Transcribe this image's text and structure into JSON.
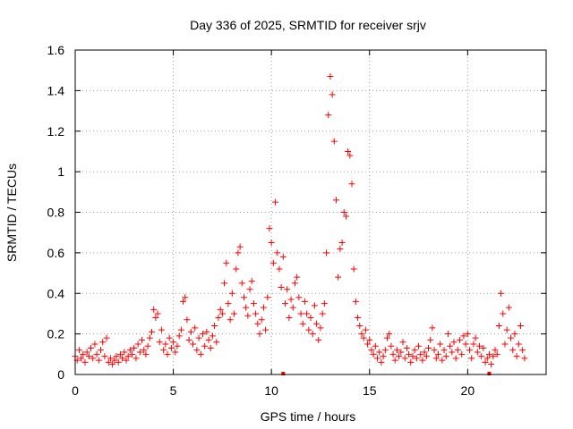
{
  "chart_data": {
    "type": "scatter",
    "title": "Day 336 of 2025, SRMTID for receiver srjv",
    "xlabel": "GPS time / hours",
    "ylabel": "SRMTID / TECUs",
    "xlim": [
      0,
      24
    ],
    "ylim": [
      0,
      1.6
    ],
    "xticks": [
      0,
      5,
      10,
      15,
      20
    ],
    "xtick_labels": [
      "0",
      "5",
      "10",
      "15",
      "20"
    ],
    "yticks": [
      0,
      0.2,
      0.4,
      0.6,
      0.8,
      1.0,
      1.2,
      1.4,
      1.6
    ],
    "ytick_labels": [
      "0",
      "0.2",
      "0.4",
      "0.6",
      "0.8",
      "1",
      "1.2",
      "1.4",
      "1.6"
    ],
    "grid": true,
    "marker": "+",
    "color": "#ff0000",
    "series": [
      {
        "name": "SRMTID",
        "points": [
          [
            0.0,
            0.09
          ],
          [
            0.1,
            0.07
          ],
          [
            0.2,
            0.12
          ],
          [
            0.3,
            0.08
          ],
          [
            0.4,
            0.1
          ],
          [
            0.5,
            0.06
          ],
          [
            0.6,
            0.11
          ],
          [
            0.7,
            0.09
          ],
          [
            0.8,
            0.13
          ],
          [
            0.9,
            0.08
          ],
          [
            1.0,
            0.15
          ],
          [
            1.1,
            0.1
          ],
          [
            1.2,
            0.07
          ],
          [
            1.3,
            0.12
          ],
          [
            1.4,
            0.16
          ],
          [
            1.5,
            0.09
          ],
          [
            1.6,
            0.18
          ],
          [
            1.7,
            0.06
          ],
          [
            1.8,
            0.08
          ],
          [
            1.9,
            0.05
          ],
          [
            2.0,
            0.07
          ],
          [
            2.1,
            0.09
          ],
          [
            2.2,
            0.06
          ],
          [
            2.3,
            0.1
          ],
          [
            2.4,
            0.08
          ],
          [
            2.5,
            0.11
          ],
          [
            2.6,
            0.07
          ],
          [
            2.7,
            0.09
          ],
          [
            2.8,
            0.12
          ],
          [
            2.9,
            0.1
          ],
          [
            3.0,
            0.13
          ],
          [
            3.1,
            0.08
          ],
          [
            3.2,
            0.15
          ],
          [
            3.3,
            0.11
          ],
          [
            3.4,
            0.17
          ],
          [
            3.5,
            0.12
          ],
          [
            3.6,
            0.1
          ],
          [
            3.7,
            0.14
          ],
          [
            3.8,
            0.18
          ],
          [
            3.9,
            0.21
          ],
          [
            4.0,
            0.32
          ],
          [
            4.1,
            0.28
          ],
          [
            4.2,
            0.3
          ],
          [
            4.3,
            0.16
          ],
          [
            4.4,
            0.22
          ],
          [
            4.5,
            0.12
          ],
          [
            4.6,
            0.15
          ],
          [
            4.7,
            0.1
          ],
          [
            4.8,
            0.18
          ],
          [
            4.9,
            0.13
          ],
          [
            5.0,
            0.16
          ],
          [
            5.1,
            0.11
          ],
          [
            5.2,
            0.14
          ],
          [
            5.3,
            0.19
          ],
          [
            5.4,
            0.22
          ],
          [
            5.5,
            0.36
          ],
          [
            5.6,
            0.38
          ],
          [
            5.7,
            0.27
          ],
          [
            5.8,
            0.17
          ],
          [
            5.9,
            0.21
          ],
          [
            6.0,
            0.15
          ],
          [
            6.1,
            0.23
          ],
          [
            6.2,
            0.12
          ],
          [
            6.3,
            0.18
          ],
          [
            6.4,
            0.1
          ],
          [
            6.5,
            0.2
          ],
          [
            6.6,
            0.14
          ],
          [
            6.7,
            0.21
          ],
          [
            6.8,
            0.17
          ],
          [
            6.9,
            0.13
          ],
          [
            7.0,
            0.19
          ],
          [
            7.1,
            0.24
          ],
          [
            7.2,
            0.16
          ],
          [
            7.3,
            0.28
          ],
          [
            7.4,
            0.32
          ],
          [
            7.5,
            0.3
          ],
          [
            7.6,
            0.45
          ],
          [
            7.7,
            0.55
          ],
          [
            7.8,
            0.35
          ],
          [
            7.9,
            0.27
          ],
          [
            8.0,
            0.4
          ],
          [
            8.1,
            0.3
          ],
          [
            8.2,
            0.52
          ],
          [
            8.3,
            0.6
          ],
          [
            8.4,
            0.63
          ],
          [
            8.5,
            0.45
          ],
          [
            8.6,
            0.38
          ],
          [
            8.7,
            0.33
          ],
          [
            8.8,
            0.29
          ],
          [
            8.9,
            0.42
          ],
          [
            9.0,
            0.46
          ],
          [
            9.1,
            0.35
          ],
          [
            9.2,
            0.3
          ],
          [
            9.3,
            0.25
          ],
          [
            9.4,
            0.2
          ],
          [
            9.5,
            0.27
          ],
          [
            9.6,
            0.33
          ],
          [
            9.7,
            0.22
          ],
          [
            9.8,
            0.38
          ],
          [
            9.9,
            0.72
          ],
          [
            10.0,
            0.65
          ],
          [
            10.1,
            0.55
          ],
          [
            10.2,
            0.85
          ],
          [
            10.3,
            0.6
          ],
          [
            10.4,
            0.52
          ],
          [
            10.5,
            0.43
          ],
          [
            10.6,
            0.58
          ],
          [
            10.7,
            0.35
          ],
          [
            10.8,
            0.42
          ],
          [
            10.9,
            0.28
          ],
          [
            11.0,
            0.37
          ],
          [
            11.1,
            0.33
          ],
          [
            11.2,
            0.45
          ],
          [
            11.3,
            0.48
          ],
          [
            11.4,
            0.38
          ],
          [
            11.5,
            0.3
          ],
          [
            11.6,
            0.25
          ],
          [
            11.7,
            0.36
          ],
          [
            11.8,
            0.3
          ],
          [
            11.9,
            0.22
          ],
          [
            12.0,
            0.28
          ],
          [
            12.1,
            0.2
          ],
          [
            12.2,
            0.34
          ],
          [
            12.3,
            0.25
          ],
          [
            12.4,
            0.17
          ],
          [
            12.5,
            0.23
          ],
          [
            12.6,
            0.3
          ],
          [
            12.7,
            0.35
          ],
          [
            12.8,
            0.6
          ],
          [
            12.9,
            1.28
          ],
          [
            13.0,
            1.47
          ],
          [
            13.1,
            1.38
          ],
          [
            13.2,
            1.15
          ],
          [
            13.3,
            0.86
          ],
          [
            13.4,
            0.48
          ],
          [
            13.5,
            0.62
          ],
          [
            13.6,
            0.65
          ],
          [
            13.7,
            0.8
          ],
          [
            13.8,
            0.78
          ],
          [
            13.9,
            1.1
          ],
          [
            14.0,
            1.08
          ],
          [
            14.1,
            0.94
          ],
          [
            14.2,
            0.52
          ],
          [
            14.3,
            0.36
          ],
          [
            14.4,
            0.28
          ],
          [
            14.5,
            0.24
          ],
          [
            14.6,
            0.2
          ],
          [
            14.7,
            0.18
          ],
          [
            14.8,
            0.22
          ],
          [
            14.9,
            0.15
          ],
          [
            15.0,
            0.17
          ],
          [
            15.1,
            0.12
          ],
          [
            15.2,
            0.1
          ],
          [
            15.3,
            0.14
          ],
          [
            15.4,
            0.08
          ],
          [
            15.5,
            0.11
          ],
          [
            15.6,
            0.06
          ],
          [
            15.7,
            0.09
          ],
          [
            15.8,
            0.12
          ],
          [
            15.9,
            0.18
          ],
          [
            16.0,
            0.2
          ],
          [
            16.1,
            0.14
          ],
          [
            16.2,
            0.1
          ],
          [
            16.3,
            0.07
          ],
          [
            16.4,
            0.12
          ],
          [
            16.5,
            0.09
          ],
          [
            16.6,
            0.11
          ],
          [
            16.7,
            0.16
          ],
          [
            16.8,
            0.08
          ],
          [
            16.9,
            0.13
          ],
          [
            17.0,
            0.1
          ],
          [
            17.1,
            0.06
          ],
          [
            17.2,
            0.09
          ],
          [
            17.3,
            0.12
          ],
          [
            17.4,
            0.08
          ],
          [
            17.5,
            0.14
          ],
          [
            17.6,
            0.1
          ],
          [
            17.7,
            0.07
          ],
          [
            17.8,
            0.11
          ],
          [
            17.9,
            0.09
          ],
          [
            18.0,
            0.13
          ],
          [
            18.1,
            0.17
          ],
          [
            18.2,
            0.23
          ],
          [
            18.3,
            0.12
          ],
          [
            18.4,
            0.08
          ],
          [
            18.5,
            0.1
          ],
          [
            18.6,
            0.15
          ],
          [
            18.7,
            0.07
          ],
          [
            18.8,
            0.12
          ],
          [
            18.9,
            0.09
          ],
          [
            19.0,
            0.2
          ],
          [
            19.1,
            0.14
          ],
          [
            19.2,
            0.11
          ],
          [
            19.3,
            0.16
          ],
          [
            19.4,
            0.08
          ],
          [
            19.5,
            0.12
          ],
          [
            19.6,
            0.17
          ],
          [
            19.7,
            0.1
          ],
          [
            19.8,
            0.19
          ],
          [
            19.9,
            0.15
          ],
          [
            20.0,
            0.2
          ],
          [
            20.1,
            0.12
          ],
          [
            20.2,
            0.08
          ],
          [
            20.3,
            0.15
          ],
          [
            20.4,
            0.18
          ],
          [
            20.5,
            0.11
          ],
          [
            20.6,
            0.14
          ],
          [
            20.7,
            0.09
          ],
          [
            20.8,
            0.13
          ],
          [
            20.9,
            0.06
          ],
          [
            21.0,
            0.08
          ],
          [
            21.1,
            0.1
          ],
          [
            21.2,
            0.05
          ],
          [
            21.3,
            0.09
          ],
          [
            21.4,
            0.12
          ],
          [
            21.5,
            0.1
          ],
          [
            21.6,
            0.24
          ],
          [
            21.7,
            0.4
          ],
          [
            21.8,
            0.3
          ],
          [
            21.9,
            0.15
          ],
          [
            22.0,
            0.22
          ],
          [
            22.1,
            0.33
          ],
          [
            22.2,
            0.18
          ],
          [
            22.3,
            0.12
          ],
          [
            22.4,
            0.2
          ],
          [
            22.5,
            0.09
          ],
          [
            22.6,
            0.15
          ],
          [
            22.7,
            0.24
          ],
          [
            22.8,
            0.12
          ],
          [
            22.9,
            0.08
          ]
        ]
      }
    ],
    "markers_on_x_axis": [
      10.6,
      21.1
    ]
  }
}
